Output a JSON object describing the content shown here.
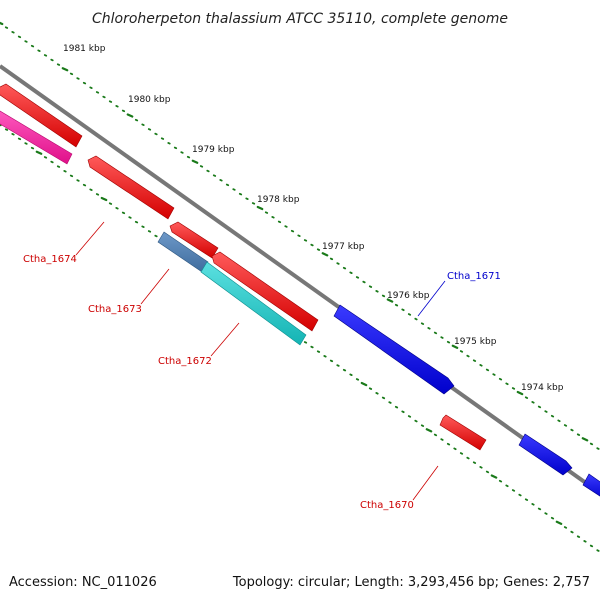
{
  "title": "Chloroherpeton thalassium ATCC 35110, complete genome",
  "footer": {
    "accession": "Accession: NC_011026",
    "topology": "Topology: circular; Length: 3,293,456 bp; Genes: 2,757"
  },
  "colors": {
    "backbone": "#777777",
    "tick": "#1a7a1a",
    "forward_gene": "#0000ee",
    "reverse_gene": "#ee0000",
    "magenta_gene": "#ff1aa0",
    "cyan_gene": "#22cccc",
    "steel_gene": "#4d7fb3",
    "label_red": "#cc0000",
    "label_blue": "#0000cc"
  },
  "scale": {
    "unit": "kbp",
    "ticks": [
      "1981 kbp",
      "1980 kbp",
      "1979 kbp",
      "1978 kbp",
      "1977 kbp",
      "1976 kbp",
      "1975 kbp",
      "1974 kbp"
    ]
  },
  "genes": [
    {
      "id": "Ctha_1674",
      "label": "Ctha_1674",
      "strand": "reverse",
      "color_key": "reverse_gene"
    },
    {
      "id": "Ctha_1673",
      "label": "Ctha_1673",
      "strand": "reverse",
      "color_key": "steel_gene"
    },
    {
      "id": "Ctha_1672",
      "label": "Ctha_1672",
      "strand": "reverse",
      "color_key": "cyan_gene"
    },
    {
      "id": "Ctha_1671",
      "label": "Ctha_1671",
      "strand": "forward",
      "color_key": "forward_gene"
    },
    {
      "id": "Ctha_1670",
      "label": "Ctha_1670",
      "strand": "reverse",
      "color_key": "reverse_gene"
    }
  ]
}
